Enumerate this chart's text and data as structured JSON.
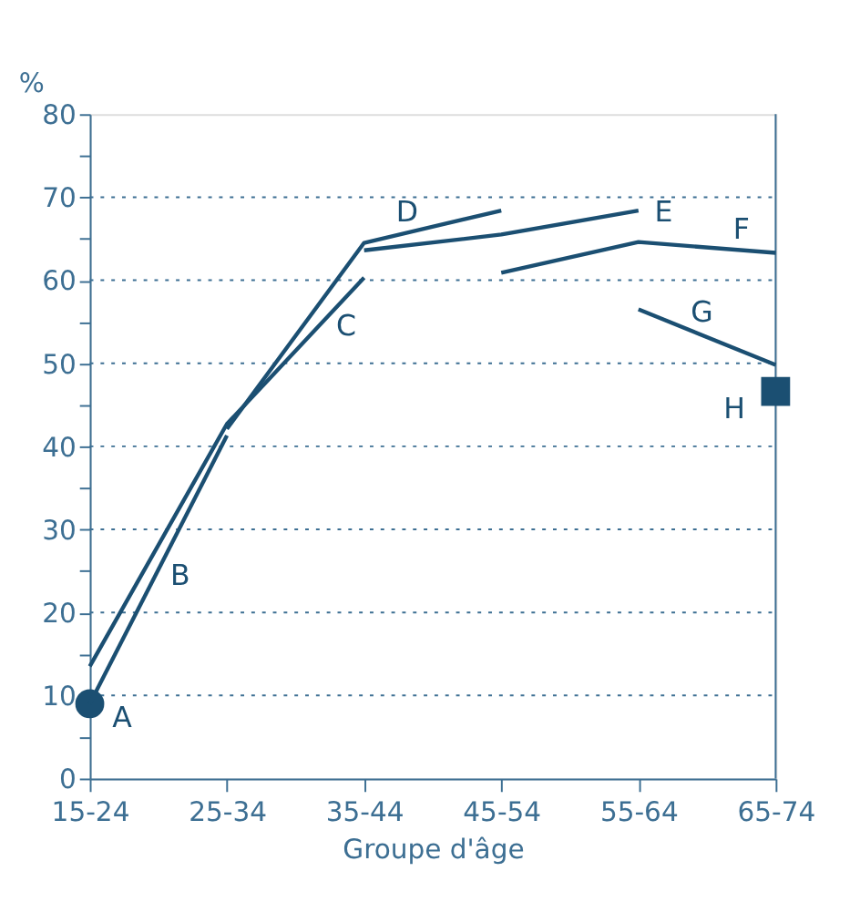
{
  "chart_data": {
    "type": "line",
    "ylabel": "%",
    "xlabel": "Groupe d'âge",
    "categories": [
      "15-24",
      "25-34",
      "35-44",
      "45-54",
      "55-64",
      "65-74"
    ],
    "ylim": [
      0,
      80
    ],
    "yticks": [
      0,
      {
        "value": 5,
        "label": null
      },
      10,
      {
        "value": 15,
        "label": null
      },
      20,
      {
        "value": 25,
        "label": null
      },
      30,
      {
        "value": 35,
        "label": null
      },
      40,
      {
        "value": 45,
        "label": null
      },
      50,
      {
        "value": 55,
        "label": null
      },
      60,
      {
        "value": 65,
        "label": null
      },
      70,
      {
        "value": 75,
        "label": null
      },
      80
    ],
    "grid": "y",
    "line_style": "solid",
    "series": [
      {
        "name": "A",
        "type": "scatter",
        "marker": "circle",
        "color": "#1b4f72",
        "values": [
          9,
          null,
          null,
          null,
          null,
          null
        ]
      },
      {
        "name": "B",
        "color": "#1b4f72",
        "values": [
          9,
          41.3,
          null,
          null,
          null,
          null
        ]
      },
      {
        "name": "C",
        "color": "#1b4f72",
        "values": [
          13.5,
          42.7,
          60.3,
          null,
          null,
          null
        ]
      },
      {
        "name": "D",
        "color": "#1b4f72",
        "values": [
          null,
          42.1,
          64.5,
          68.4,
          null,
          null
        ]
      },
      {
        "name": "E",
        "color": "#1b4f72",
        "values": [
          null,
          null,
          63.6,
          65.5,
          68.4,
          null
        ]
      },
      {
        "name": "F",
        "color": "#1b4f72",
        "values": [
          null,
          null,
          null,
          60.9,
          64.6,
          63.3
        ]
      },
      {
        "name": "G",
        "color": "#1b4f72",
        "values": [
          null,
          null,
          null,
          null,
          56.5,
          49.8
        ]
      },
      {
        "name": "H",
        "type": "scatter",
        "marker": "square",
        "color": "#1b4f72",
        "values": [
          null,
          null,
          null,
          null,
          null,
          46.6
        ]
      }
    ]
  }
}
